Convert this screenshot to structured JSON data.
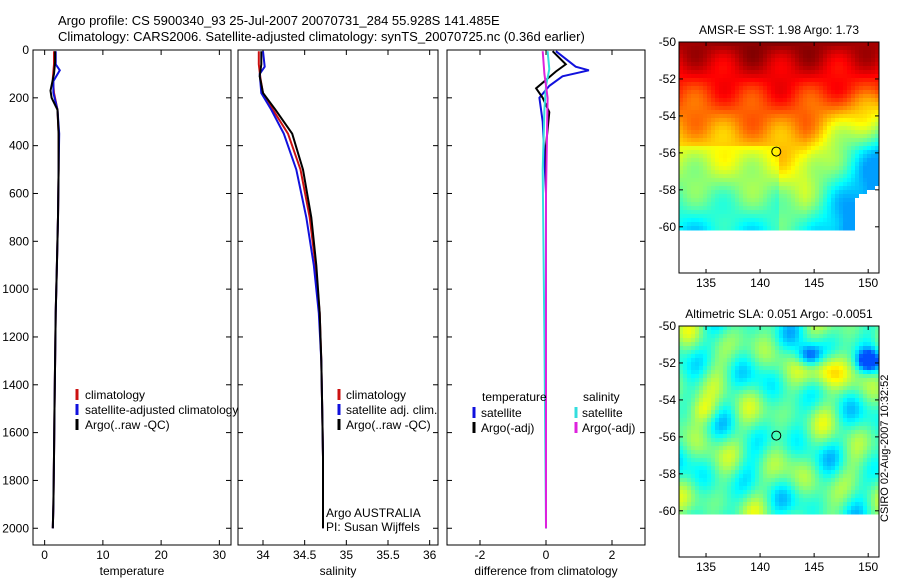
{
  "header": {
    "line1": "Argo profile: CS 5900340_93 25-Jul-2007 20070731_284 55.928S 141.485E",
    "line2": "Climatology: CARS2006. Satellite-adjusted climatology: synTS_20070725.nc (0.36d earlier)"
  },
  "footer_stamp": "CSIRO 02-Aug-2007 10:32:52",
  "colors": {
    "clim": "#cc1111",
    "sat": "#1111dd",
    "argo": "#000000",
    "sat_diff_s": "#33dddd",
    "argo_diff_s": "#dd22dd"
  },
  "chart_data": [
    {
      "type": "line",
      "id": "temperature",
      "xlabel": "temperature",
      "xlim": [
        -2,
        32
      ],
      "ylim": [
        2070,
        0
      ],
      "xticks": [
        0,
        10,
        20,
        30
      ],
      "yticks": [
        0,
        200,
        400,
        600,
        800,
        1000,
        1200,
        1400,
        1600,
        1800,
        2000
      ],
      "legend": [
        "climatology",
        "satellite-adjusted climatology",
        "Argo(..raw -QC)"
      ],
      "series": [
        {
          "name": "climatology",
          "color": "clim",
          "x": [
            1.6,
            1.6,
            1.4,
            1.6,
            2.2,
            2.4,
            2.4,
            2.3,
            2.1,
            1.9,
            1.8,
            1.7,
            1.6,
            1.5,
            1.4
          ],
          "y": [
            5,
            60,
            120,
            180,
            250,
            350,
            500,
            700,
            900,
            1100,
            1300,
            1500,
            1700,
            1900,
            2000
          ]
        },
        {
          "name": "satellite-adjusted climatology",
          "color": "sat",
          "x": [
            1.9,
            1.9,
            2.6,
            1.5,
            1.5,
            2.2,
            2.5,
            2.4,
            2.3,
            2.1,
            1.9,
            1.8,
            1.7,
            1.6,
            1.5,
            1.4
          ],
          "y": [
            5,
            60,
            85,
            130,
            180,
            250,
            350,
            500,
            700,
            900,
            1100,
            1300,
            1500,
            1700,
            1900,
            2000
          ]
        },
        {
          "name": "Argo(..raw -QC)",
          "color": "argo",
          "x": [
            1.8,
            1.8,
            1.6,
            1.0,
            1.2,
            2.2,
            2.4,
            2.4,
            2.3,
            2.1,
            1.9,
            1.8,
            1.7,
            1.6,
            1.5,
            1.4
          ],
          "y": [
            5,
            50,
            100,
            170,
            200,
            250,
            350,
            500,
            700,
            900,
            1100,
            1300,
            1500,
            1700,
            1900,
            2000
          ]
        }
      ]
    },
    {
      "type": "line",
      "id": "salinity",
      "xlabel": "salinity",
      "xlim": [
        33.7,
        36.1
      ],
      "ylim": [
        2070,
        0
      ],
      "xticks": [
        34,
        34.5,
        35,
        35.5,
        36
      ],
      "legend": [
        "climatology",
        "satellite adj. clim.",
        "Argo(..raw -QC)"
      ],
      "annotation": [
        "Argo AUSTRALIA",
        "PI: Susan Wijffels"
      ],
      "series": [
        {
          "name": "climatology",
          "color": "clim",
          "x": [
            33.95,
            33.95,
            33.97,
            34.0,
            34.12,
            34.3,
            34.45,
            34.56,
            34.63,
            34.68,
            34.7,
            34.71,
            34.72,
            34.72,
            34.72,
            34.72
          ],
          "y": [
            5,
            60,
            120,
            180,
            250,
            350,
            500,
            700,
            900,
            1100,
            1300,
            1500,
            1700,
            1900,
            2000,
            2000
          ]
        },
        {
          "name": "satellite adj. clim.",
          "color": "sat",
          "x": [
            34.0,
            34.02,
            33.96,
            33.98,
            34.1,
            34.25,
            34.4,
            34.52,
            34.61,
            34.67,
            34.7,
            34.71,
            34.72,
            34.72,
            34.72
          ],
          "y": [
            5,
            70,
            100,
            180,
            250,
            350,
            500,
            700,
            900,
            1100,
            1300,
            1500,
            1700,
            1900,
            2000
          ]
        },
        {
          "name": "Argo(..raw -QC)",
          "color": "argo",
          "x": [
            33.98,
            33.98,
            33.96,
            34.0,
            34.15,
            34.35,
            34.48,
            34.58,
            34.64,
            34.68,
            34.7,
            34.71,
            34.72,
            34.72,
            34.72
          ],
          "y": [
            5,
            60,
            110,
            180,
            250,
            350,
            500,
            700,
            900,
            1100,
            1300,
            1500,
            1700,
            1900,
            2000
          ]
        }
      ]
    },
    {
      "type": "line",
      "id": "difference",
      "xlabel": "difference from climatology",
      "xlim": [
        -3,
        3
      ],
      "ylim": [
        2070,
        0
      ],
      "xticks": [
        -2,
        0,
        2
      ],
      "legend_temperature_title": "temperature",
      "legend_salinity_title": "salinity",
      "legend_temperature": [
        "satellite",
        "Argo(-adj)"
      ],
      "legend_salinity": [
        "satellite",
        "Argo(-adj)"
      ],
      "series": [
        {
          "name": "satellite",
          "group": "temperature",
          "color": "sat",
          "x": [
            0.3,
            0.9,
            1.3,
            0.5,
            0.1,
            -0.2,
            -0.1,
            0.0,
            0.0,
            0.0
          ],
          "y": [
            5,
            70,
            85,
            110,
            150,
            200,
            300,
            600,
            1200,
            2000
          ]
        },
        {
          "name": "Argo(-adj)",
          "group": "temperature",
          "color": "argo",
          "x": [
            0.2,
            0.6,
            0.3,
            -0.3,
            -0.1,
            0.1,
            0.0,
            0.0,
            0.0
          ],
          "y": [
            5,
            60,
            90,
            160,
            200,
            260,
            400,
            1000,
            2000
          ]
        },
        {
          "name": "satellite",
          "group": "salinity",
          "color": "sat_diff_s",
          "x": [
            0.05,
            0.1,
            0.0,
            -0.05,
            -0.1,
            -0.05,
            0.0
          ],
          "y": [
            5,
            80,
            150,
            250,
            500,
            1200,
            2000
          ]
        },
        {
          "name": "Argo(-adj)",
          "group": "salinity",
          "color": "argo_diff_s",
          "x": [
            -0.1,
            -0.05,
            0.05,
            0.0,
            0.0
          ],
          "y": [
            5,
            100,
            200,
            600,
            2000
          ]
        }
      ]
    },
    {
      "type": "heatmap",
      "id": "sst_map",
      "title": "AMSR-E SST: 1.98 Argo: 1.73",
      "xlim": [
        132.5,
        151
      ],
      "ylim": [
        -62.5,
        -50
      ],
      "xticks": [
        135,
        140,
        145,
        150
      ],
      "yticks": [
        -50,
        -52,
        -54,
        -56,
        -58,
        -60
      ],
      "marker": {
        "lon": 141.5,
        "lat": -55.93
      }
    },
    {
      "type": "heatmap",
      "id": "sla_map",
      "title": "Altimetric SLA: 0.051 Argo: -0.0051",
      "xlim": [
        132.5,
        151
      ],
      "ylim": [
        -62.5,
        -50
      ],
      "xticks": [
        135,
        140,
        145,
        150
      ],
      "yticks": [
        -50,
        -52,
        -54,
        -56,
        -58,
        -60
      ],
      "marker": {
        "lon": 141.5,
        "lat": -55.93
      }
    }
  ]
}
